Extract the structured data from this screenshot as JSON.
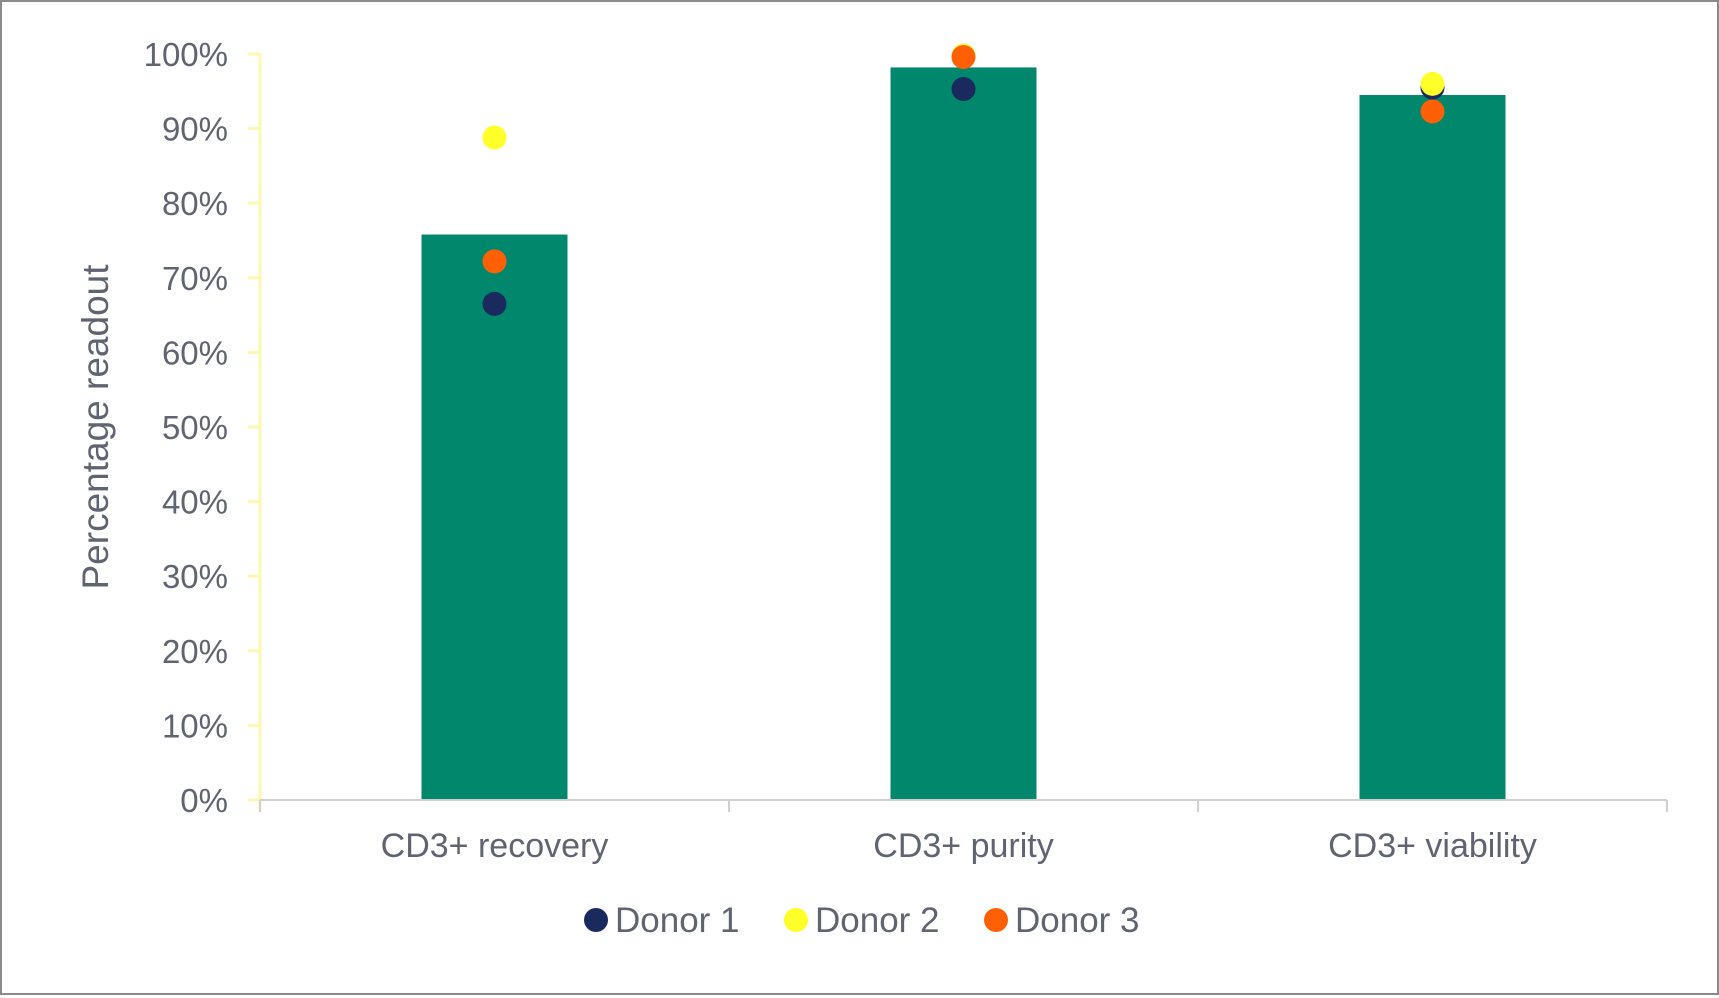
{
  "chart_data": {
    "type": "bar",
    "title": "",
    "xlabel": "",
    "ylabel": "Percentage readout",
    "ylim": [
      0,
      100
    ],
    "ytick_step": 10,
    "ytick_suffix": "%",
    "categories": [
      "CD3+ recovery",
      "CD3+ purity",
      "CD3+ viability"
    ],
    "values": [
      75.8,
      98.2,
      94.5
    ],
    "bar_color": "#00876c",
    "axis_color": "#fdf7b0",
    "baseline_color": "#d0d0d0",
    "legend_position": "bottom-center",
    "series": [
      {
        "name": "Donor 1",
        "type": "scatter",
        "color": "#1a2a5e",
        "values": [
          66.5,
          95.3,
          95.5
        ]
      },
      {
        "name": "Donor 2",
        "type": "scatter",
        "color": "#ffff2a",
        "values": [
          88.8,
          99.8,
          96.0
        ]
      },
      {
        "name": "Donor 3",
        "type": "scatter",
        "color": "#ff5f05",
        "values": [
          72.2,
          99.6,
          92.3
        ]
      }
    ]
  }
}
